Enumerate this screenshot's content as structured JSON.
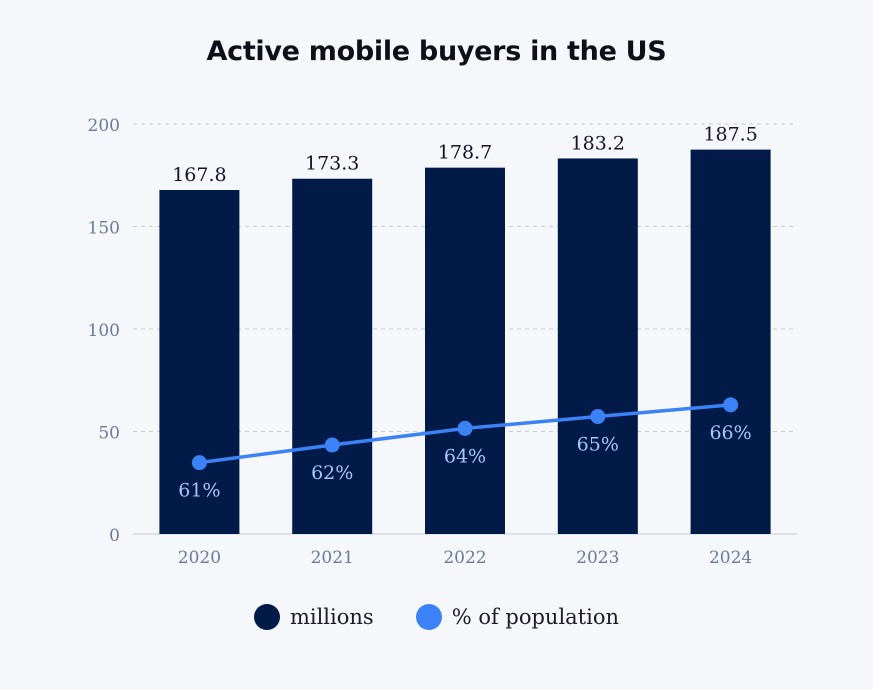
{
  "chart_data": {
    "type": "bar",
    "title": "Active mobile buyers in the US",
    "categories": [
      "2020",
      "2021",
      "2022",
      "2023",
      "2024"
    ],
    "series": [
      {
        "name": "millions",
        "type": "bar",
        "values": [
          167.8,
          173.3,
          178.7,
          183.2,
          187.5
        ],
        "labels": [
          "167.8",
          "173.3",
          "178.7",
          "183.2",
          "187.5"
        ]
      },
      {
        "name": "% of population",
        "type": "line",
        "values": [
          61,
          62,
          64,
          65,
          66
        ],
        "plotted_on_left_axis": [
          34.8,
          43.4,
          51.5,
          57.3,
          63.0
        ],
        "labels": [
          "61%",
          "62%",
          "64%",
          "65%",
          "66%"
        ]
      }
    ],
    "yticks": [
      "0",
      "50",
      "100",
      "150",
      "200"
    ],
    "ylim": [
      0,
      200
    ],
    "grid": true,
    "legend_position": "bottom"
  },
  "colors": {
    "bar": "#011a47",
    "line": "#3b82f6",
    "point_label": "#a8c4ff",
    "tick": "#6b7a99",
    "grid": "#c7ccd6"
  }
}
